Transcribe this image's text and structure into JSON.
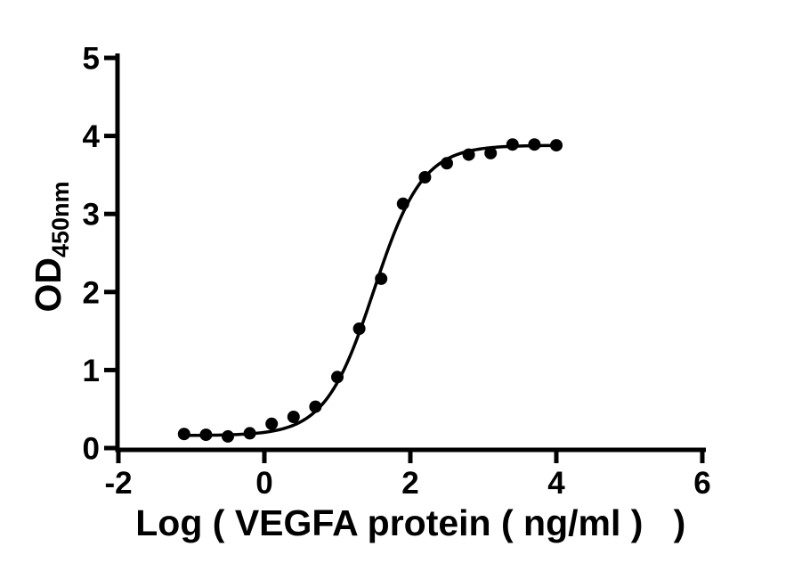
{
  "page": {
    "background_color": "#ffffff"
  },
  "chart_data": {
    "type": "scatter",
    "title": "",
    "xlabel": "Log ( VEGFA protein ( ng/ml )   )",
    "ylabel_main": "OD",
    "ylabel_subscript": "450nm",
    "xlim": [
      -2,
      6
    ],
    "ylim": [
      0,
      5
    ],
    "x_tick_values": [
      -2,
      0,
      2,
      4,
      6
    ],
    "x_tick_labels": [
      "-2",
      "0",
      "2",
      "4",
      "6"
    ],
    "y_tick_values": [
      0,
      1,
      2,
      3,
      4,
      5
    ],
    "y_tick_labels": [
      "0",
      "1",
      "2",
      "3",
      "4",
      "5"
    ],
    "grid": false,
    "legend": null,
    "axis_color": "#000000",
    "marker_color": "#000000",
    "line_color": "#000000",
    "marker": "circle",
    "points": [
      {
        "log_conc": -1.1,
        "od": 0.18
      },
      {
        "log_conc": -0.8,
        "od": 0.17
      },
      {
        "log_conc": -0.5,
        "od": 0.15
      },
      {
        "log_conc": -0.2,
        "od": 0.19
      },
      {
        "log_conc": 0.1,
        "od": 0.31
      },
      {
        "log_conc": 0.4,
        "od": 0.4
      },
      {
        "log_conc": 0.7,
        "od": 0.53
      },
      {
        "log_conc": 1.0,
        "od": 0.91
      },
      {
        "log_conc": 1.3,
        "od": 1.53
      },
      {
        "log_conc": 1.6,
        "od": 2.17
      },
      {
        "log_conc": 1.9,
        "od": 3.13
      },
      {
        "log_conc": 2.2,
        "od": 3.47
      },
      {
        "log_conc": 2.5,
        "od": 3.65
      },
      {
        "log_conc": 2.8,
        "od": 3.76
      },
      {
        "log_conc": 3.1,
        "od": 3.78
      },
      {
        "log_conc": 3.4,
        "od": 3.89
      },
      {
        "log_conc": 3.7,
        "od": 3.89
      },
      {
        "log_conc": 4.0,
        "od": 3.88
      }
    ],
    "fit_curve": {
      "model": "four_parameter_logistic",
      "bottom": 0.16,
      "top": 3.88,
      "log_ec50": 1.5,
      "hill_slope": 1.3,
      "x_start": -1.1,
      "x_end": 4.0
    }
  }
}
